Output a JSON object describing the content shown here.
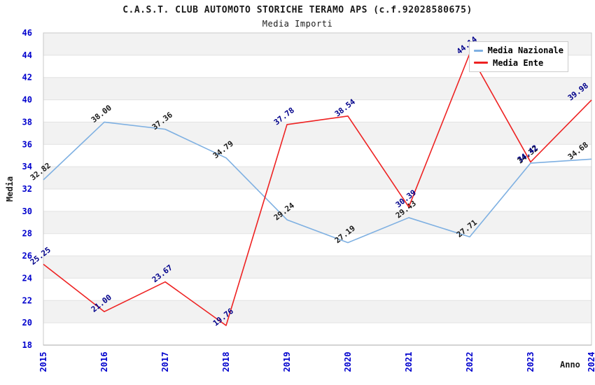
{
  "chart": {
    "title": "C.A.S.T. CLUB AUTOMOTO STORICHE TERAMO APS (c.f.92028580675)",
    "subtitle": "Media Importi",
    "ylabel": "Media",
    "xlabel": "Anno"
  },
  "legend": {
    "items": [
      {
        "label": "Media Nazionale",
        "color": "#7EB0E2"
      },
      {
        "label": "Media Ente",
        "color": "#EE2222"
      }
    ],
    "position": "top-right"
  },
  "chart_data": {
    "type": "line",
    "title": "C.A.S.T. CLUB AUTOMOTO STORICHE TERAMO APS (c.f.92028580675)",
    "subtitle": "Media Importi",
    "xlabel": "Anno",
    "ylabel": "Media",
    "categories": [
      "2015",
      "2016",
      "2017",
      "2018",
      "2019",
      "2020",
      "2021",
      "2022",
      "2023",
      "2024"
    ],
    "series": [
      {
        "name": "Media Nazionale",
        "color": "#7EB0E2",
        "label_color": "#1a1a1a",
        "values": [
          32.82,
          38.0,
          37.36,
          34.79,
          29.24,
          27.19,
          29.43,
          27.71,
          34.32,
          34.68
        ]
      },
      {
        "name": "Media Ente",
        "color": "#EE2222",
        "label_color": "#00008B",
        "values": [
          25.25,
          21.0,
          23.67,
          19.76,
          37.78,
          38.54,
          30.39,
          44.14,
          34.42,
          39.98
        ]
      }
    ],
    "ylim": [
      18,
      46
    ],
    "ytick_step": 2,
    "grid": "horizontal-bands",
    "legend_position": "top-right",
    "style": {
      "tick_label_color": "#0000CD",
      "band_color": "#F2F2F2",
      "grid_line_color": "#E2E2E2",
      "border_color": "#C8C8C8",
      "axis_bottom_color": "#AAAAAA"
    }
  }
}
